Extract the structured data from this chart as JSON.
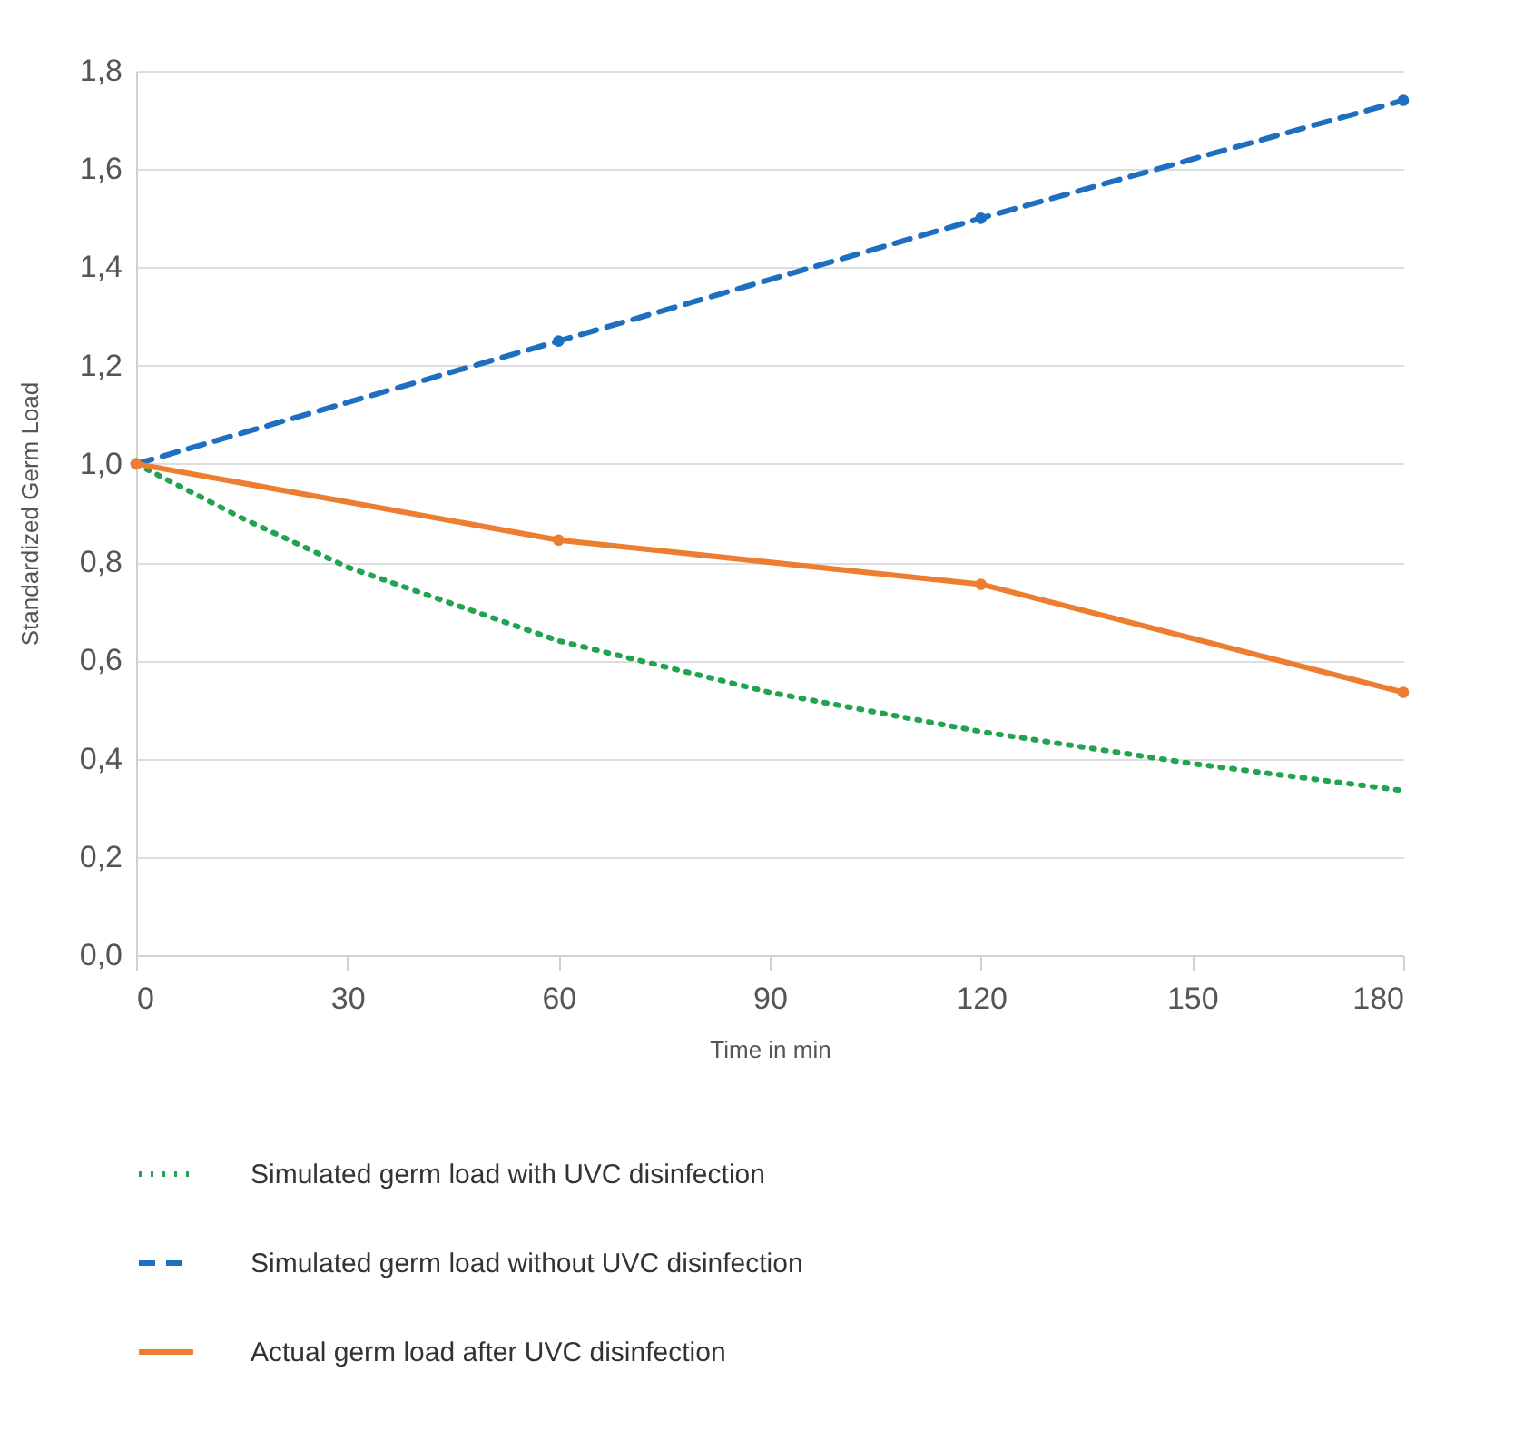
{
  "chart_data": {
    "type": "line",
    "xlabel": "Time in min",
    "ylabel": "Standardized Germ Load",
    "xlim": [
      0,
      180
    ],
    "xticks": [
      0,
      30,
      60,
      90,
      120,
      150,
      180
    ],
    "ylim": [
      0,
      1.8
    ],
    "yticks": [
      {
        "value": 0,
        "label": "0,0"
      },
      {
        "value": 0.2,
        "label": "0,2"
      },
      {
        "value": 0.4,
        "label": "0,4"
      },
      {
        "value": 0.6,
        "label": "0,6"
      },
      {
        "value": 0.8,
        "label": "0,8"
      },
      {
        "value": 1.0,
        "label": "1,0"
      },
      {
        "value": 1.2,
        "label": "1,2"
      },
      {
        "value": 1.4,
        "label": "1,4"
      },
      {
        "value": 1.6,
        "label": "1,6"
      },
      {
        "value": 1.8,
        "label": "1,8"
      }
    ],
    "grid": "y",
    "legend": "bottom",
    "series": [
      {
        "name": "Simulated germ load with UVC disinfection",
        "color": "#22a350",
        "line_style": "dotted",
        "marker": "none",
        "x": [
          0,
          15,
          30,
          60,
          90,
          120,
          150,
          180
        ],
        "values": [
          1.0,
          0.89,
          0.79,
          0.64,
          0.535,
          0.455,
          0.39,
          0.335
        ]
      },
      {
        "name": "Simulated germ load without UVC disinfection",
        "color": "#1f6fc0",
        "line_style": "dashed",
        "marker": "circle",
        "x": [
          0,
          60,
          120,
          180
        ],
        "values": [
          1.0,
          1.25,
          1.5,
          1.74
        ]
      },
      {
        "name": "Actual germ load after UVC disinfection",
        "color": "#ed7d31",
        "line_style": "solid",
        "marker": "circle",
        "x": [
          0,
          60,
          120,
          180
        ],
        "values": [
          1.0,
          0.845,
          0.755,
          0.535
        ]
      }
    ]
  }
}
